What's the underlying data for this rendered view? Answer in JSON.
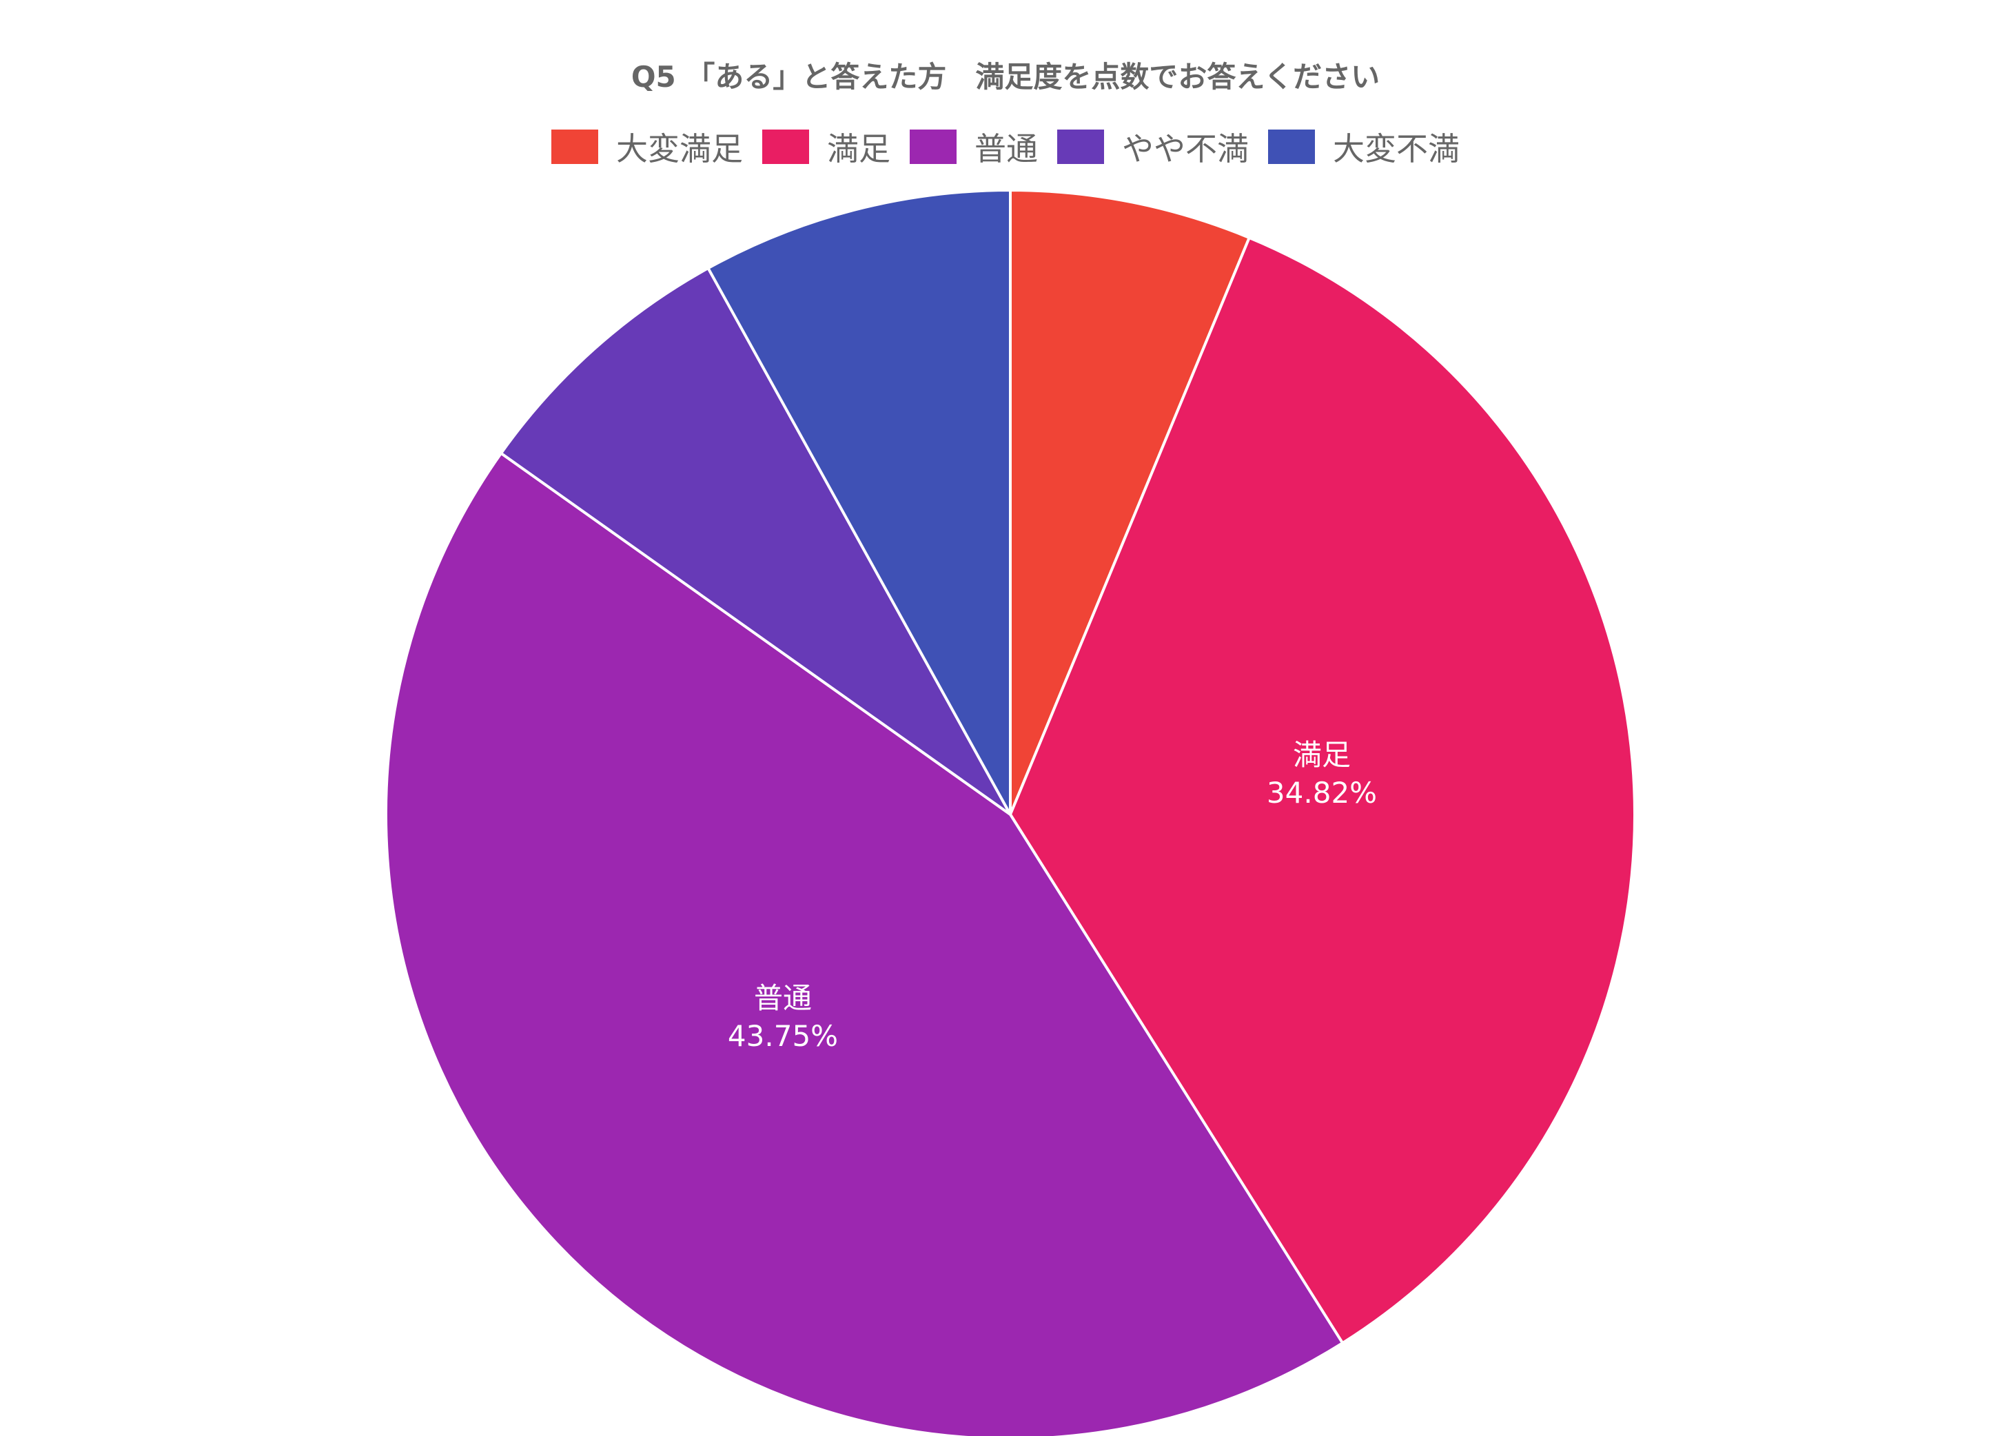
{
  "chart_data": {
    "type": "pie",
    "title": "Q5 「ある」と答えた方　満足度を点数でお答えください",
    "categories": [
      "大変満足",
      "満足",
      "普通",
      "やや不満",
      "大変不満"
    ],
    "values": [
      6.25,
      34.82,
      43.75,
      7.14,
      8.04
    ],
    "colors": [
      "#f04436",
      "#e91e63",
      "#9c27b0",
      "#673ab7",
      "#3f51b5"
    ],
    "data_labels": [
      {
        "category": "満足",
        "text": "34.82%"
      },
      {
        "category": "普通",
        "text": "43.75%"
      }
    ],
    "legend_position": "top",
    "start_angle_deg": 0,
    "direction": "clockwise"
  },
  "title": "Q5 「ある」と答えた方　満足度を点数でお答えください",
  "legend": [
    {
      "label": "大変満足",
      "color": "#f04436"
    },
    {
      "label": "満足",
      "color": "#e91e63"
    },
    {
      "label": "普通",
      "color": "#9c27b0"
    },
    {
      "label": "やや不満",
      "color": "#673ab7"
    },
    {
      "label": "大変不満",
      "color": "#3f51b5"
    }
  ],
  "slice_labels": {
    "manzoku": {
      "name": "満足",
      "pct": "34.82%"
    },
    "futsu": {
      "name": "普通",
      "pct": "43.75%"
    }
  }
}
